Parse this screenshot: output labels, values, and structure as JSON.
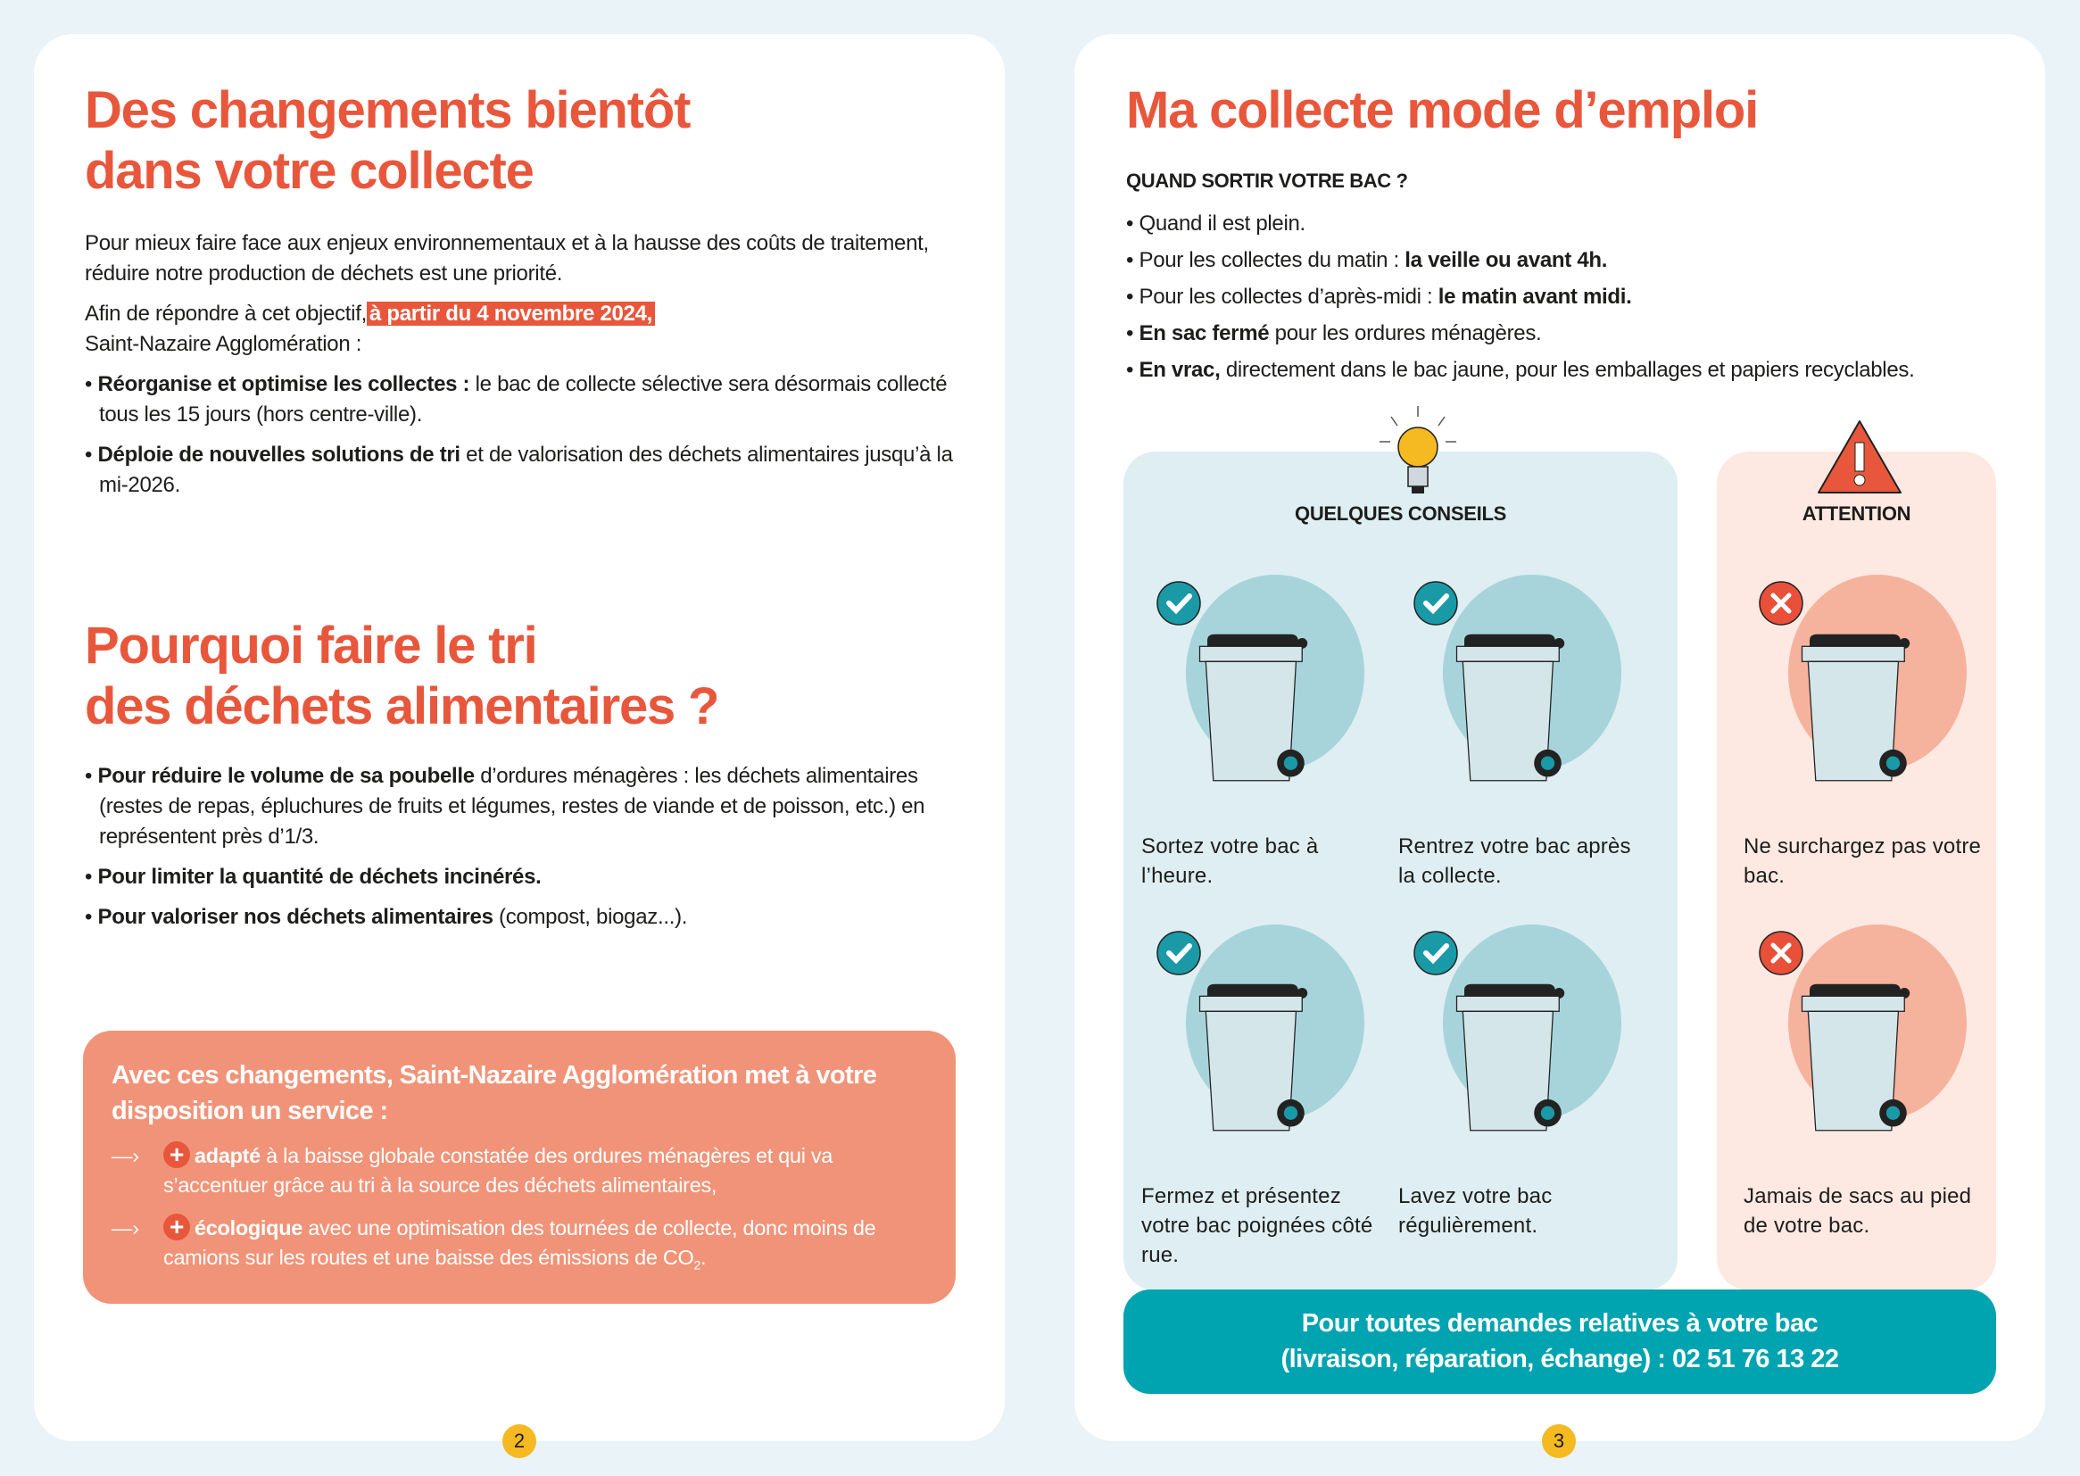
{
  "left": {
    "title1": [
      "Des changements bientôt",
      "dans votre collecte"
    ],
    "intro": "Pour mieux faire face aux enjeux environnementaux et à la hausse des coûts de traitement, réduire notre production de déchets est une priorité.",
    "objective_prefix": "Afin de répondre à cet objectif,",
    "objective_highlight": "à partir du 4 novembre 2024,",
    "objective_suffix": "Saint-Nazaire Agglomération :",
    "bullets1": [
      {
        "bold": "Réorganise et optimise les collectes :",
        "text": " le bac de collecte sélective sera désormais collecté tous les 15 jours (hors centre-ville)."
      },
      {
        "bold": "Déploie de nouvelles solutions de tri",
        "text": " et de valorisation des déchets alimentaires jusqu’à la mi-2026."
      }
    ],
    "title2": [
      "Pourquoi faire le tri",
      "des déchets alimentaires ?"
    ],
    "bullets2": [
      {
        "bold": "Pour réduire le volume de sa poubelle",
        "text": " d’ordures ménagères : les déchets alimentaires (restes de repas, épluchures de fruits et légumes, restes de viande et de poisson, etc.) en représentent près d’1/3."
      },
      {
        "bold": "Pour limiter la quantité de déchets incinérés.",
        "text": ""
      },
      {
        "bold": "Pour valoriser nos déchets alimentaires",
        "text": " (compost, biogaz...)."
      }
    ],
    "box": {
      "heading": "Avec ces changements, Saint-Nazaire Agglomération met à votre disposition un service :",
      "arrow": "—›",
      "plus": "+",
      "items": [
        {
          "bold": "adapté",
          "text": " à la baisse globale constatée des ordures ménagères et qui va s’accentuer grâce au tri à la source des déchets alimentaires,"
        },
        {
          "bold": "écologique",
          "text": " avec une optimisation des tournées de collecte, donc moins de camions sur les routes et une baisse des émissions de CO",
          "sub": "2",
          "end": "."
        }
      ]
    },
    "page_number": "2"
  },
  "right": {
    "title": "Ma collecte mode d’emploi",
    "subtitle": "QUAND SORTIR VOTRE BAC ?",
    "bullets": [
      {
        "text": "Quand il est plein.",
        "bold": ""
      },
      {
        "text": "Pour les collectes du matin : ",
        "bold": "la veille ou avant 4h."
      },
      {
        "text": "Pour les collectes d’après-midi : ",
        "bold": "le matin avant midi."
      },
      {
        "bold": "En sac fermé",
        "text": " pour les ordures ménagères.",
        "boldFirst": true
      },
      {
        "bold": "En vrac,",
        "text": " directement dans le bac jaune, pour les emballages et papiers recyclables.",
        "boldFirst": true
      }
    ],
    "advice_title": "QUELQUES CONSEILS",
    "attention_title": "ATTENTION",
    "advice": [
      {
        "caption": "Sortez votre bac à l’heure.",
        "icon": "check-icon"
      },
      {
        "caption": "Rentrez votre bac après la collecte.",
        "icon": "check-icon"
      },
      {
        "caption": "Fermez et présentez votre bac poignées côté rue.",
        "icon": "check-icon"
      },
      {
        "caption": "Lavez votre bac régulièrement.",
        "icon": "check-icon"
      }
    ],
    "attention": [
      {
        "caption": "Ne surchargez pas votre bac.",
        "icon": "cross-icon"
      },
      {
        "caption": "Jamais de sacs au pied de votre bac.",
        "icon": "cross-icon"
      }
    ],
    "contact": [
      "Pour toutes demandes relatives à votre bac",
      "(livraison, réparation, échange) : 02 51 76 13 22"
    ],
    "page_number": "3"
  },
  "colors": {
    "title": "#e8573c",
    "box": "#f19378",
    "teal": "#00a3b0",
    "advice_bg": "#deeef2",
    "attention_bg": "#fde9e2",
    "page_badge": "#f5b921"
  }
}
